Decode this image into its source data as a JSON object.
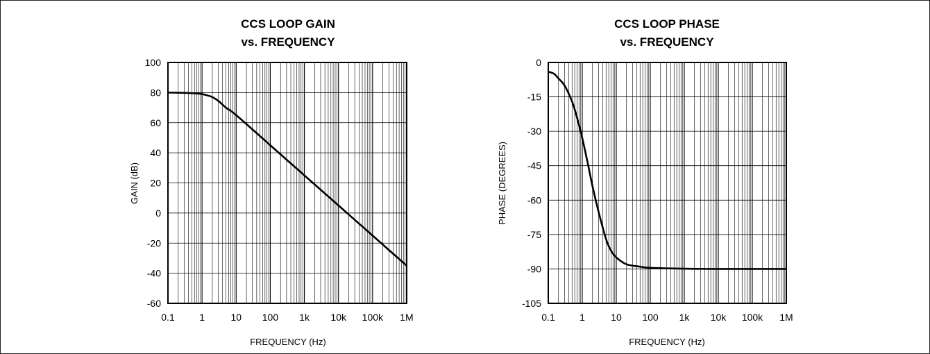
{
  "chart_data": [
    {
      "type": "line",
      "title": "CCS LOOP GAIN",
      "subtitle": "vs. FREQUENCY",
      "xlabel": "FREQUENCY (Hz)",
      "ylabel": "GAIN (dB)",
      "xscale": "log",
      "xlim": [
        0.1,
        1000000
      ],
      "ylim": [
        -60,
        100
      ],
      "xticks": [
        0.1,
        1,
        10,
        100,
        1000,
        10000,
        100000,
        1000000
      ],
      "xtick_labels": [
        "0.1",
        "1",
        "10",
        "100",
        "1k",
        "10k",
        "100k",
        "1M"
      ],
      "yticks": [
        100,
        80,
        60,
        40,
        20,
        0,
        -20,
        -40,
        -60
      ],
      "ytick_labels": [
        "100",
        "80",
        "60",
        "40",
        "20",
        "0",
        "-20",
        "-40",
        "-60"
      ],
      "grid": true,
      "series": [
        {
          "x": [
            0.1,
            0.3,
            0.6,
            1,
            1.5,
            2,
            3,
            5,
            10,
            100,
            1000,
            10000,
            100000,
            1000000
          ],
          "y": [
            80,
            79.8,
            79.5,
            79,
            78,
            77,
            74.5,
            70,
            65,
            45,
            25,
            5,
            -15,
            -35
          ]
        }
      ]
    },
    {
      "type": "line",
      "title": "CCS LOOP PHASE",
      "subtitle": "vs. FREQUENCY",
      "xlabel": "FREQUENCY (Hz)",
      "ylabel": "PHASE (DEGREES)",
      "xscale": "log",
      "xlim": [
        0.1,
        1000000
      ],
      "ylim": [
        -105,
        0
      ],
      "xticks": [
        0.1,
        1,
        10,
        100,
        1000,
        10000,
        100000,
        1000000
      ],
      "xtick_labels": [
        "0.1",
        "1",
        "10",
        "100",
        "1k",
        "10k",
        "100k",
        "1M"
      ],
      "yticks": [
        0,
        -15,
        -30,
        -45,
        -60,
        -75,
        -90,
        -105
      ],
      "ytick_labels": [
        "0",
        "-15",
        "-30",
        "-45",
        "-60",
        "-75",
        "-90",
        "-105"
      ],
      "grid": true,
      "series": [
        {
          "x": [
            0.1,
            0.15,
            0.2,
            0.3,
            0.5,
            0.7,
            1,
            1.5,
            2,
            3,
            5,
            7,
            10,
            20,
            50,
            100,
            1000,
            10000,
            100000,
            1000000
          ],
          "y": [
            -4,
            -5,
            -7,
            -10,
            -17,
            -24,
            -33,
            -45,
            -54,
            -65,
            -77,
            -82,
            -85,
            -88,
            -89,
            -89.5,
            -89.9,
            -90,
            -90,
            -90
          ]
        }
      ]
    }
  ]
}
